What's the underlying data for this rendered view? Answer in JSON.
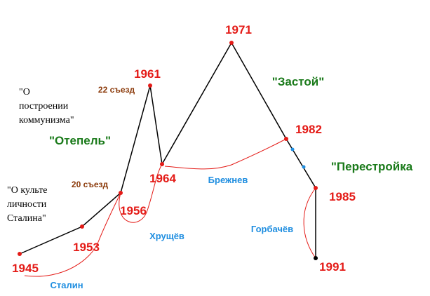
{
  "years": [
    "1945",
    "1953",
    "1956",
    "1961",
    "1964",
    "1971",
    "1982",
    "1985",
    "1991"
  ],
  "congresses": [
    "22 съезд",
    "20 съезд"
  ],
  "periods": [
    "\"Отепель\"",
    "\"Застой\"",
    "\"Перестройка"
  ],
  "leaders": [
    "Сталин",
    "Хрущёв",
    "Брежнев",
    "Горбачёв"
  ],
  "notes": [
    {
      "lines": [
        "\"О",
        "построении",
        "коммунизма\""
      ]
    },
    {
      "lines": [
        "\"О культе",
        "личности",
        "Сталина\""
      ]
    }
  ]
}
